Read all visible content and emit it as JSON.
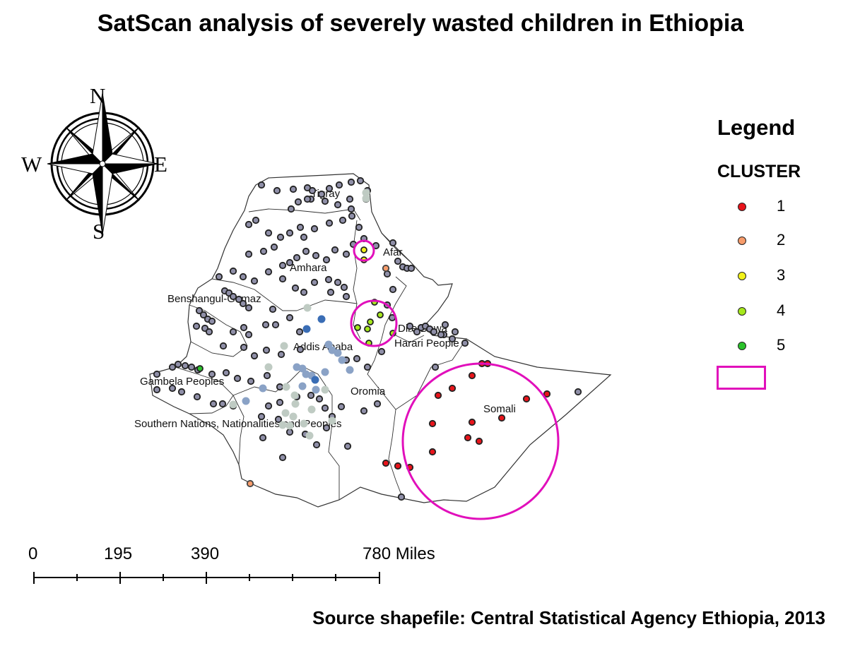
{
  "title": "SatScan analysis of severely wasted children in Ethiopia",
  "legend": {
    "title": "Legend",
    "subtitle": "CLUSTER",
    "items": [
      {
        "label": "1",
        "color": "#e8141b"
      },
      {
        "label": "2",
        "color": "#f79c6b"
      },
      {
        "label": "3",
        "color": "#f2f21a"
      },
      {
        "label": "4",
        "color": "#a6e81c"
      },
      {
        "label": "5",
        "color": "#2bc22b"
      }
    ],
    "cluster_window_color": "#e10fbb"
  },
  "compass": {
    "n": "N",
    "s": "S",
    "e": "E",
    "w": "W"
  },
  "scale_bar": {
    "labels": [
      "0",
      "195",
      "390",
      "780 Miles"
    ]
  },
  "regions": {
    "tigray": "Tigray",
    "afar": "Afar",
    "amhara": "Amhara",
    "benishangul": "Benshangul-Gumaz",
    "dire_dawa": "Dire Dawa",
    "harari": "Harari People",
    "addis": "Addis Ababa",
    "gambela": "Gambela Peoples",
    "oromia": "Oromia",
    "somali": "Somali",
    "snnp": "Southern Nations, Nationalities and Peoples"
  },
  "source": "Source shapefile: Central Statistical Agency Ethiopia, 2013",
  "colors": {
    "non_cluster": "#8f8fa8",
    "low_rate_light": "#bfcbc3",
    "low_rate_mid": "#8aa2c6",
    "low_rate_dark": "#3a6db5",
    "cluster1": "#e8141b",
    "cluster2": "#f79c6b",
    "cluster3": "#f2f21a",
    "cluster4": "#a6e81c",
    "cluster5": "#2bc22b"
  }
}
